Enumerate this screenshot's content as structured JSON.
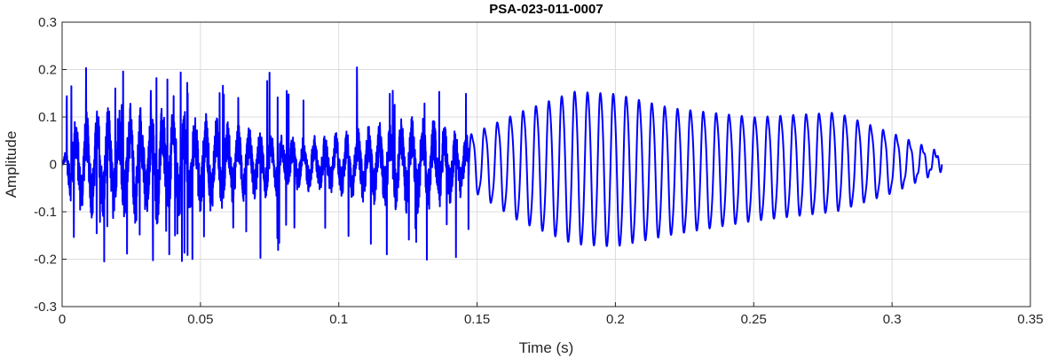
{
  "chart_data": {
    "type": "line",
    "title": "PSA-023-011-0007",
    "xlabel": "Time (s)",
    "ylabel": "Amplitude",
    "xlim": [
      0,
      0.35
    ],
    "ylim": [
      -0.3,
      0.3
    ],
    "xticks": [
      0,
      0.05,
      0.1,
      0.15,
      0.2,
      0.25,
      0.3,
      0.35
    ],
    "xtick_labels": [
      "0",
      "0.05",
      "0.1",
      "0.15",
      "0.2",
      "0.25",
      "0.3",
      "0.35"
    ],
    "yticks": [
      -0.3,
      -0.2,
      -0.1,
      0,
      0.1,
      0.2,
      0.3
    ],
    "ytick_labels": [
      "-0.3",
      "-0.2",
      "-0.1",
      "0",
      "0.1",
      "0.2",
      "0.3"
    ],
    "grid": true,
    "series": [
      {
        "color": "#0000ff",
        "signal_end": 0.318,
        "noisy_segment": {
          "t_start": 0,
          "t_end": 0.147,
          "typical_peak": 0.12,
          "max": 0.205,
          "min": -0.225
        },
        "oscillatory_segment": {
          "t_start": 0.147,
          "t_end": 0.318,
          "peak_envelope": [
            [
              0.147,
              0.06
            ],
            [
              0.165,
              0.11
            ],
            [
              0.185,
              0.155
            ],
            [
              0.2,
              0.15
            ],
            [
              0.22,
              0.12
            ],
            [
              0.25,
              0.1
            ],
            [
              0.28,
              0.11
            ],
            [
              0.3,
              0.065
            ],
            [
              0.318,
              0.02
            ]
          ],
          "trough_envelope": [
            [
              0.147,
              -0.05
            ],
            [
              0.165,
              -0.12
            ],
            [
              0.185,
              -0.17
            ],
            [
              0.2,
              -0.175
            ],
            [
              0.22,
              -0.15
            ],
            [
              0.25,
              -0.12
            ],
            [
              0.28,
              -0.1
            ],
            [
              0.3,
              -0.06
            ],
            [
              0.318,
              -0.01
            ]
          ]
        }
      }
    ]
  }
}
